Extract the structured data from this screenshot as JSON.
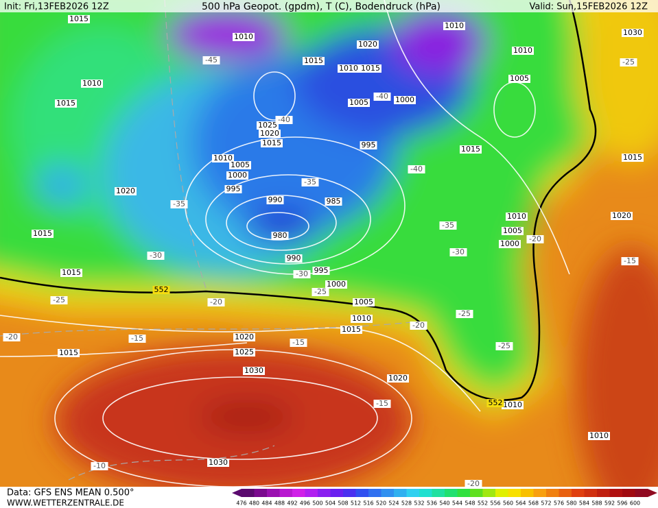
{
  "header": {
    "init": "Init: Fri,13FEB2026 12Z",
    "title": "500 hPa Geopot. (gpdm), T (C), Bodendruck (hPa)",
    "valid": "Valid: Sun,15FEB2026 12Z"
  },
  "isobar_labels": [
    "1015",
    "1010",
    "1015",
    "1020",
    "1010",
    "1010",
    "1030",
    "1010",
    "1015",
    "1010",
    "1015",
    "1005",
    "1005",
    "1000",
    "1025",
    "1020",
    "1015",
    "995",
    "1015",
    "1015",
    "1010",
    "1005",
    "1000",
    "995",
    "1020",
    "990",
    "985",
    "980",
    "1015",
    "1010",
    "1005",
    "1000",
    "1020",
    "990",
    "995",
    "1000",
    "1015",
    "1005",
    "1010",
    "1015",
    "1020",
    "1025",
    "1030",
    "1015",
    "1020",
    "1010",
    "1010",
    "1030"
  ],
  "temperature_labels": [
    "-45",
    "-40",
    "-40",
    "-40",
    "-35",
    "-35",
    "-35",
    "-30",
    "-30",
    "-30",
    "-25",
    "-25",
    "-20",
    "-20",
    "-20",
    "-25",
    "-25",
    "-20",
    "-15",
    "-15",
    "-15",
    "-15",
    "-25",
    "-10",
    "-20"
  ],
  "geopotential_labels": [
    "552",
    "552"
  ],
  "colorbar": {
    "labels": [
      "476",
      "480",
      "484",
      "488",
      "492",
      "496",
      "500",
      "504",
      "508",
      "512",
      "516",
      "520",
      "524",
      "528",
      "532",
      "536",
      "540",
      "544",
      "548",
      "552",
      "556",
      "560",
      "564",
      "568",
      "572",
      "576",
      "580",
      "584",
      "588",
      "592",
      "596",
      "600"
    ],
    "colors": [
      "#5a0a6e",
      "#7a0a8e",
      "#9a10b0",
      "#b818d0",
      "#d020e8",
      "#b020f0",
      "#8a20f0",
      "#6a20f0",
      "#4a30f0",
      "#3050f0",
      "#3070f0",
      "#3090f0",
      "#30b0f0",
      "#30d0f0",
      "#20e0d0",
      "#20e0a0",
      "#20e070",
      "#30e040",
      "#60e020",
      "#a0e810",
      "#e0f000",
      "#f8e000",
      "#f8c000",
      "#f8a010",
      "#f08010",
      "#e86010",
      "#e04010",
      "#d03010",
      "#c02010",
      "#b01010",
      "#a00a10",
      "#900a20"
    ]
  },
  "footer": {
    "data": "Data: GFS ENS MEAN 0.500°",
    "site": "WWW.WETTERZENTRALE.DE"
  }
}
